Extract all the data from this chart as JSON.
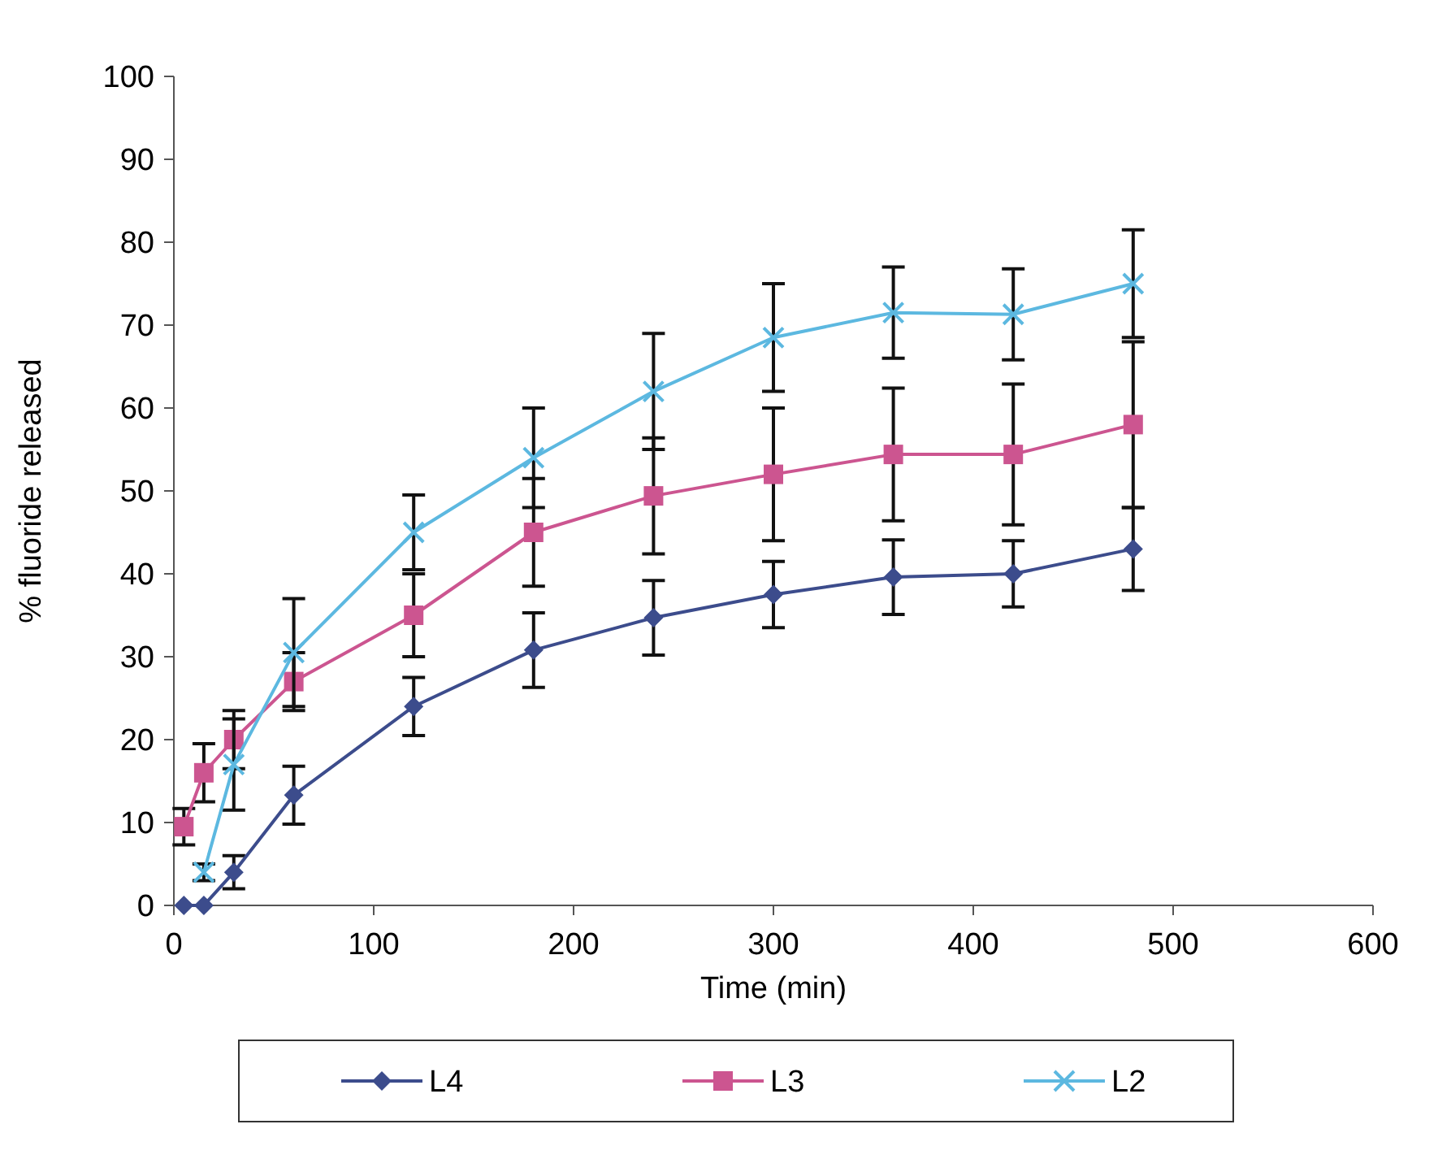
{
  "chart_data": {
    "type": "line",
    "xlabel": "Time (min)",
    "ylabel": "% fluoride released",
    "x": [
      5,
      15,
      30,
      60,
      120,
      180,
      240,
      300,
      360,
      420,
      480
    ],
    "xlim": [
      0,
      600
    ],
    "xticks": [
      0,
      100,
      200,
      300,
      400,
      500,
      600
    ],
    "ylim": [
      0,
      100
    ],
    "yticks": [
      0,
      10,
      20,
      30,
      40,
      50,
      60,
      70,
      80,
      90,
      100
    ],
    "grid": false,
    "legend": "bottom",
    "series": [
      {
        "name": "L4",
        "color": "#3c4c8c",
        "marker": "diamond",
        "values": [
          0,
          0,
          4,
          13.3,
          24,
          30.8,
          34.7,
          37.5,
          39.6,
          40,
          43
        ],
        "errors": [
          null,
          null,
          2,
          3.5,
          3.5,
          4.5,
          4.5,
          4,
          4.5,
          4,
          5
        ]
      },
      {
        "name": "L3",
        "color": "#cc5590",
        "marker": "square",
        "values": [
          9.5,
          16,
          20,
          27,
          35,
          45,
          49.4,
          52,
          54.4,
          54.4,
          58
        ],
        "errors": [
          2.2,
          3.5,
          3.5,
          3.5,
          5,
          6.5,
          7,
          8,
          8,
          8.5,
          10
        ]
      },
      {
        "name": "L2",
        "color": "#5cb8e0",
        "marker": "cross",
        "x": [
          15,
          30,
          60,
          120,
          180,
          240,
          300,
          360,
          420,
          480
        ],
        "values": [
          4,
          17,
          30.5,
          45,
          54,
          62,
          68.5,
          71.5,
          71.3,
          75
        ],
        "errors": [
          1,
          5.5,
          6.5,
          4.5,
          6,
          7,
          6.5,
          5.5,
          5.5,
          6.5
        ]
      }
    ]
  }
}
